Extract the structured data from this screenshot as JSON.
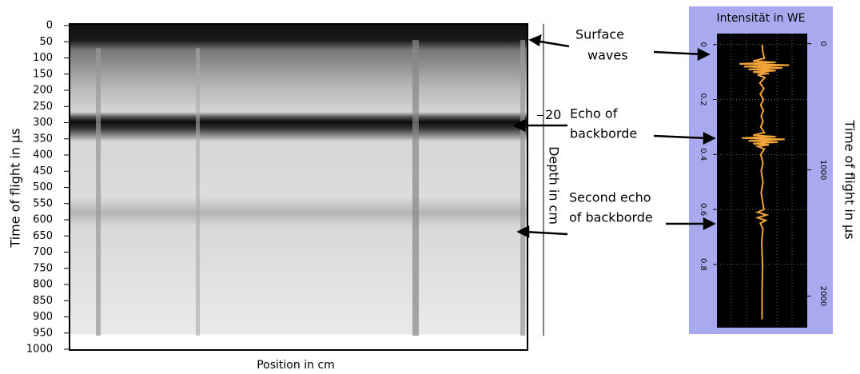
{
  "chart_data": [
    {
      "type": "bscan",
      "xlabel": "Position in cm",
      "ylabel": "Time of flight in µs",
      "y2label": "Depth in cm",
      "ylim": [
        0,
        1000
      ],
      "yticks": [
        0,
        50,
        100,
        150,
        200,
        250,
        300,
        350,
        400,
        450,
        500,
        550,
        600,
        650,
        700,
        750,
        800,
        850,
        900,
        950,
        1000
      ],
      "y2lim": [
        0,
        72
      ],
      "y2ticks": [
        20
      ],
      "annotations": [
        {
          "lines": [
            "Surface",
            "waves"
          ]
        },
        {
          "lines": [
            "Echo of",
            "backborde"
          ]
        },
        {
          "lines": [
            "Second echo",
            "of backborde"
          ]
        }
      ]
    },
    {
      "type": "ascan",
      "xlabel": "Intensität in WE",
      "ylabel": "Time of flight in µs",
      "color": "#f2a43a",
      "grid": true,
      "xlim": [
        -1,
        1
      ],
      "ylim": [
        -0.04,
        1.03
      ],
      "yticks": [
        0,
        0.2,
        0.4,
        0.6,
        0.8
      ],
      "y2lim": [
        -80,
        2250
      ],
      "y2ticks": [
        0,
        1000,
        2000
      ],
      "y": [
        0,
        0.03,
        0.05,
        0.06,
        0.065,
        0.07,
        0.075,
        0.08,
        0.085,
        0.09,
        0.095,
        0.1,
        0.105,
        0.11,
        0.12,
        0.14,
        0.16,
        0.18,
        0.2,
        0.22,
        0.24,
        0.26,
        0.28,
        0.3,
        0.32,
        0.33,
        0.335,
        0.34,
        0.345,
        0.35,
        0.355,
        0.36,
        0.365,
        0.37,
        0.38,
        0.4,
        0.43,
        0.46,
        0.5,
        0.54,
        0.58,
        0.6,
        0.61,
        0.62,
        0.63,
        0.64,
        0.65,
        0.67,
        0.72,
        0.8,
        0.9,
        1.0
      ],
      "values": [
        0,
        0.02,
        0.05,
        -0.2,
        0.3,
        -0.5,
        0.6,
        -0.4,
        0.45,
        -0.3,
        0.3,
        -0.2,
        0.15,
        -0.1,
        0.06,
        -0.05,
        0.04,
        -0.04,
        0.03,
        -0.03,
        0.03,
        -0.02,
        0.02,
        -0.03,
        0.05,
        -0.2,
        0.3,
        -0.45,
        0.5,
        -0.3,
        0.35,
        -0.2,
        0.15,
        -0.1,
        0.05,
        -0.03,
        0.02,
        -0.02,
        0.02,
        -0.02,
        0.02,
        0.04,
        -0.1,
        0.1,
        -0.1,
        0.08,
        -0.04,
        0.02,
        -0.01,
        0.01,
        0,
        0
      ]
    }
  ]
}
